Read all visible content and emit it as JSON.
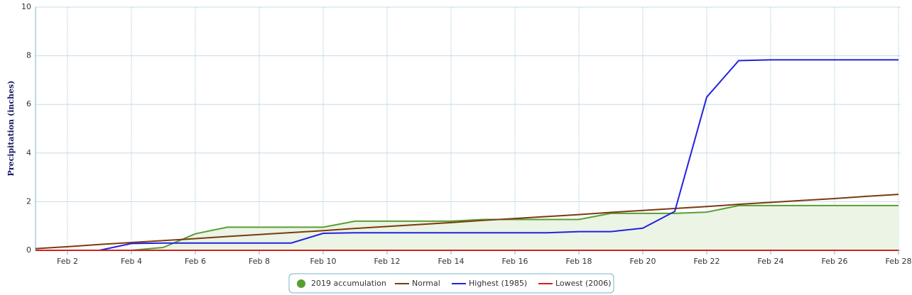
{
  "chart_data": {
    "type": "line",
    "y_label": "Precipitation (inches)",
    "categories": [
      null,
      "Feb 2",
      null,
      "Feb 4",
      null,
      "Feb 6",
      null,
      "Feb 8",
      null,
      "Feb 10",
      null,
      "Feb 12",
      null,
      "Feb 14",
      null,
      "Feb 16",
      null,
      "Feb 18",
      null,
      "Feb 20",
      null,
      "Feb 22",
      null,
      "Feb 24",
      null,
      "Feb 26",
      null,
      "Feb 28"
    ],
    "ylim": [
      0,
      10
    ],
    "yticks": [
      0,
      2,
      4,
      6,
      8,
      10
    ],
    "grid": true,
    "series": [
      {
        "name": "2019 accumulation",
        "color": "#5a9e32",
        "fill": "#ebf4e5",
        "marker": "circle",
        "values": [
          null,
          null,
          null,
          0,
          0.12,
          0.68,
          0.95,
          0.95,
          0.95,
          0.95,
          1.2,
          1.2,
          1.2,
          1.2,
          1.27,
          1.27,
          1.27,
          1.27,
          1.52,
          1.52,
          1.52,
          1.57,
          1.84,
          1.84,
          1.84,
          1.84,
          1.84,
          1.84
        ]
      },
      {
        "name": "Normal",
        "color": "#7b3a10",
        "values": [
          0.07,
          0.15,
          0.24,
          0.32,
          0.4,
          0.48,
          0.57,
          0.65,
          0.73,
          0.81,
          0.9,
          0.98,
          1.06,
          1.14,
          1.23,
          1.31,
          1.39,
          1.47,
          1.56,
          1.64,
          1.72,
          1.8,
          1.89,
          1.97,
          2.05,
          2.13,
          2.22,
          2.3
        ]
      },
      {
        "name": "Highest (1985)",
        "color": "#2222dd",
        "values": [
          0,
          0,
          0,
          0.28,
          0.3,
          0.3,
          0.3,
          0.3,
          0.3,
          0.7,
          0.72,
          0.72,
          0.72,
          0.72,
          0.72,
          0.72,
          0.72,
          0.77,
          0.77,
          0.91,
          1.6,
          6.3,
          7.8,
          7.83,
          7.83,
          7.83,
          7.83,
          7.83
        ]
      },
      {
        "name": "Lowest (2006)",
        "color": "#d02020",
        "values": [
          0,
          0,
          0,
          0,
          0,
          0,
          0,
          0,
          0,
          0,
          0,
          0,
          0,
          0,
          0,
          0,
          0,
          0,
          0,
          0,
          0,
          0,
          0,
          0,
          0,
          0,
          0,
          0
        ]
      }
    ]
  }
}
